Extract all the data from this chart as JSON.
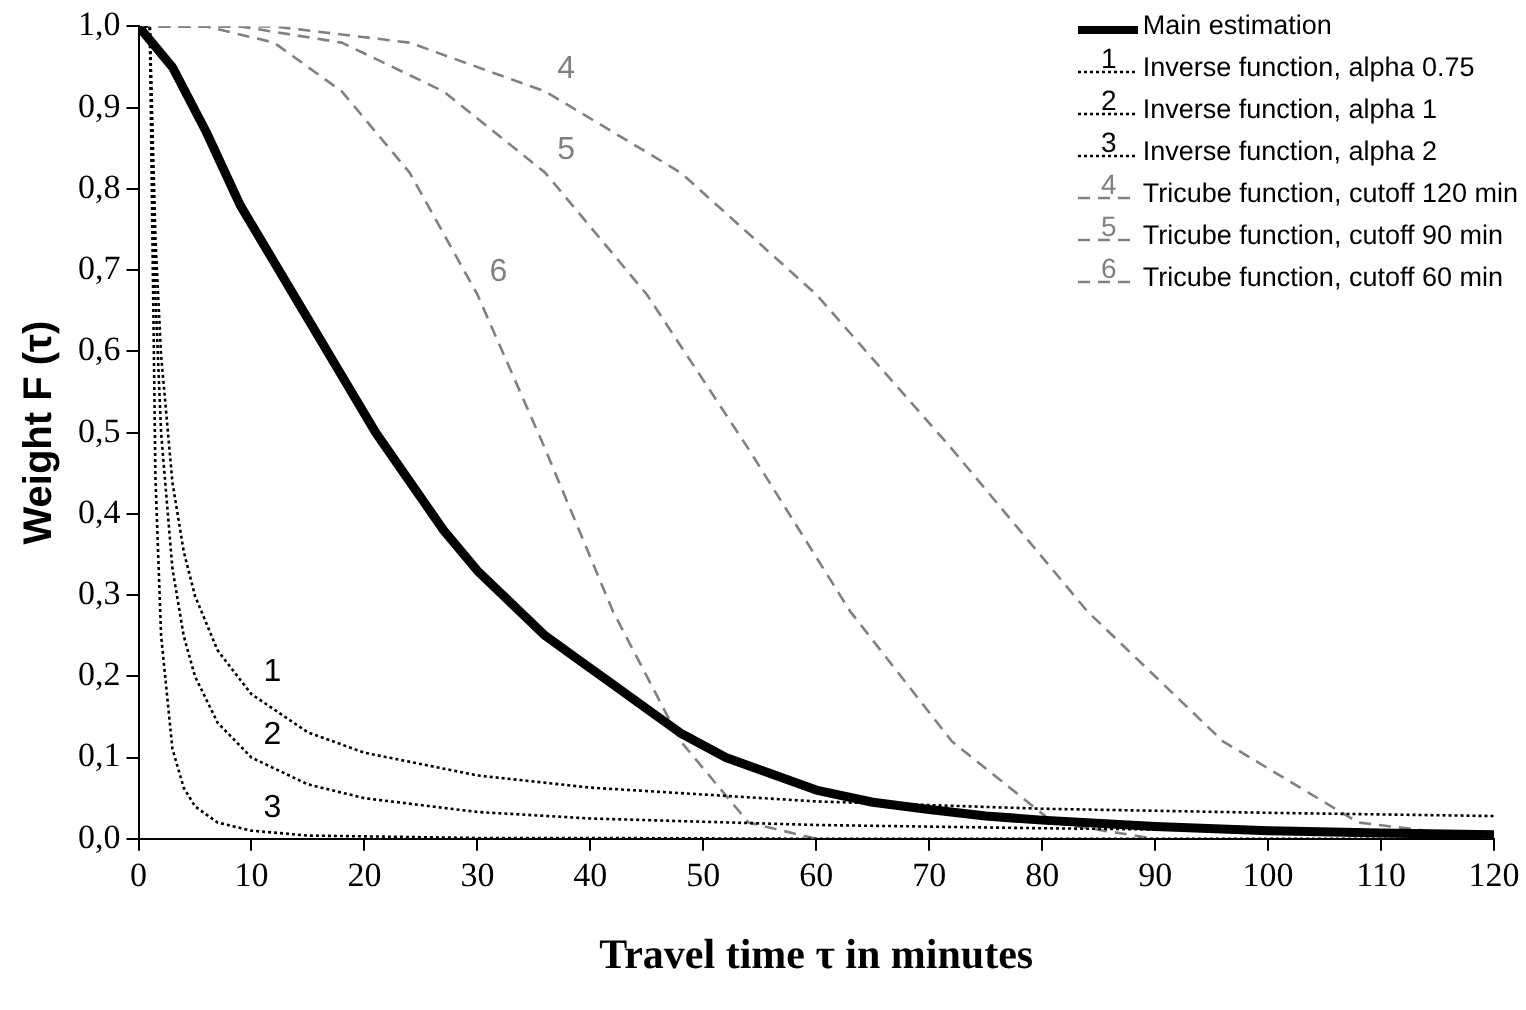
{
  "chart_data": {
    "type": "line",
    "xlabel": "Travel time τ in minutes",
    "ylabel": "Weight F (τ)",
    "xlim": [
      0,
      120
    ],
    "xticks": [
      0,
      10,
      20,
      30,
      40,
      50,
      60,
      70,
      80,
      90,
      100,
      110,
      120
    ],
    "ylim": [
      0,
      1
    ],
    "yticks": [
      {
        "value": 0,
        "label": "0,0"
      },
      {
        "value": 0.1,
        "label": "0,1"
      },
      {
        "value": 0.2,
        "label": "0,2"
      },
      {
        "value": 0.3,
        "label": "0,3"
      },
      {
        "value": 0.4,
        "label": "0,4"
      },
      {
        "value": 0.5,
        "label": "0,5"
      },
      {
        "value": 0.6,
        "label": "0,6"
      },
      {
        "value": 0.7,
        "label": "0,7"
      },
      {
        "value": 0.8,
        "label": "0,8"
      },
      {
        "value": 0.9,
        "label": "0,9"
      },
      {
        "value": 1,
        "label": "1,0"
      }
    ],
    "grid": false,
    "legend": "top right",
    "marker": "none",
    "series": [
      {
        "name": "Main estimation",
        "color": "#000000",
        "line_style": "solid",
        "x": [
          0,
          3,
          6,
          9,
          12,
          15,
          18,
          21,
          24,
          27,
          30,
          33,
          36,
          39,
          42,
          45,
          48,
          52,
          56,
          60,
          65,
          70,
          75,
          80,
          90,
          100,
          110,
          120
        ],
        "values": [
          1,
          0.95,
          0.87,
          0.78,
          0.71,
          0.64,
          0.57,
          0.5,
          0.44,
          0.38,
          0.33,
          0.29,
          0.25,
          0.22,
          0.19,
          0.16,
          0.13,
          0.1,
          0.08,
          0.06,
          0.045,
          0.036,
          0.028,
          0.023,
          0.015,
          0.01,
          0.007,
          0.005
        ]
      },
      {
        "name": "Inverse function, alpha 0.75",
        "color": "#000000",
        "line_style": "dotted",
        "x": [
          0,
          1,
          1.5,
          2,
          3,
          4,
          5,
          7,
          10,
          15,
          20,
          30,
          40,
          60,
          80,
          100,
          120
        ],
        "values": [
          1,
          1,
          0.738,
          0.595,
          0.439,
          0.354,
          0.299,
          0.232,
          0.178,
          0.131,
          0.106,
          0.078,
          0.063,
          0.046,
          0.037,
          0.032,
          0.028
        ]
      },
      {
        "name": "Inverse function, alpha 1",
        "color": "#000000",
        "line_style": "dotted",
        "x": [
          0,
          1,
          1.5,
          2,
          3,
          4,
          5,
          7,
          10,
          15,
          20,
          30,
          40,
          60,
          80,
          100,
          120
        ],
        "values": [
          1,
          1,
          0.667,
          0.5,
          0.333,
          0.25,
          0.2,
          0.143,
          0.1,
          0.067,
          0.05,
          0.033,
          0.025,
          0.017,
          0.013,
          0.01,
          0.008
        ]
      },
      {
        "name": "Inverse function, alpha 2",
        "color": "#000000",
        "line_style": "dotted",
        "x": [
          0,
          1,
          1.5,
          2,
          3,
          4,
          5,
          7,
          10,
          15,
          20,
          30,
          40,
          60,
          80,
          100,
          120
        ],
        "values": [
          1,
          1,
          0.444,
          0.25,
          0.111,
          0.063,
          0.04,
          0.02,
          0.01,
          0.004,
          0.003,
          0.001,
          0.001,
          0,
          0,
          0,
          0
        ]
      },
      {
        "name": "Tricube function, cutoff 120 min",
        "color": "#808080",
        "line_style": "dashed",
        "x": [
          0,
          12,
          24,
          36,
          48,
          60,
          72,
          84,
          96,
          108,
          120
        ],
        "values": [
          1,
          1,
          0.98,
          0.92,
          0.82,
          0.67,
          0.48,
          0.28,
          0.12,
          0.02,
          0
        ]
      },
      {
        "name": "Tricube function, cutoff 90 min",
        "color": "#808080",
        "line_style": "dashed",
        "x": [
          0,
          9,
          18,
          27,
          36,
          45,
          54,
          63,
          72,
          81,
          90
        ],
        "values": [
          1,
          1,
          0.98,
          0.92,
          0.82,
          0.67,
          0.48,
          0.28,
          0.12,
          0.02,
          0
        ]
      },
      {
        "name": "Tricube function, cutoff 60 min",
        "color": "#808080",
        "line_style": "dashed",
        "x": [
          0,
          6,
          12,
          18,
          24,
          30,
          36,
          42,
          48,
          54,
          60
        ],
        "values": [
          1,
          1,
          0.98,
          0.92,
          0.82,
          0.67,
          0.48,
          0.28,
          0.12,
          0.02,
          0
        ]
      }
    ],
    "annotations": [
      {
        "text": "1",
        "x": 10,
        "y": 0.178
      },
      {
        "text": "2",
        "x": 10,
        "y": 0.1
      },
      {
        "text": "3",
        "x": 10,
        "y": 0.01
      },
      {
        "text": "4",
        "x": 36,
        "y": 0.92
      },
      {
        "text": "5",
        "x": 36,
        "y": 0.82
      },
      {
        "text": "6",
        "x": 30,
        "y": 0.67
      }
    ]
  }
}
